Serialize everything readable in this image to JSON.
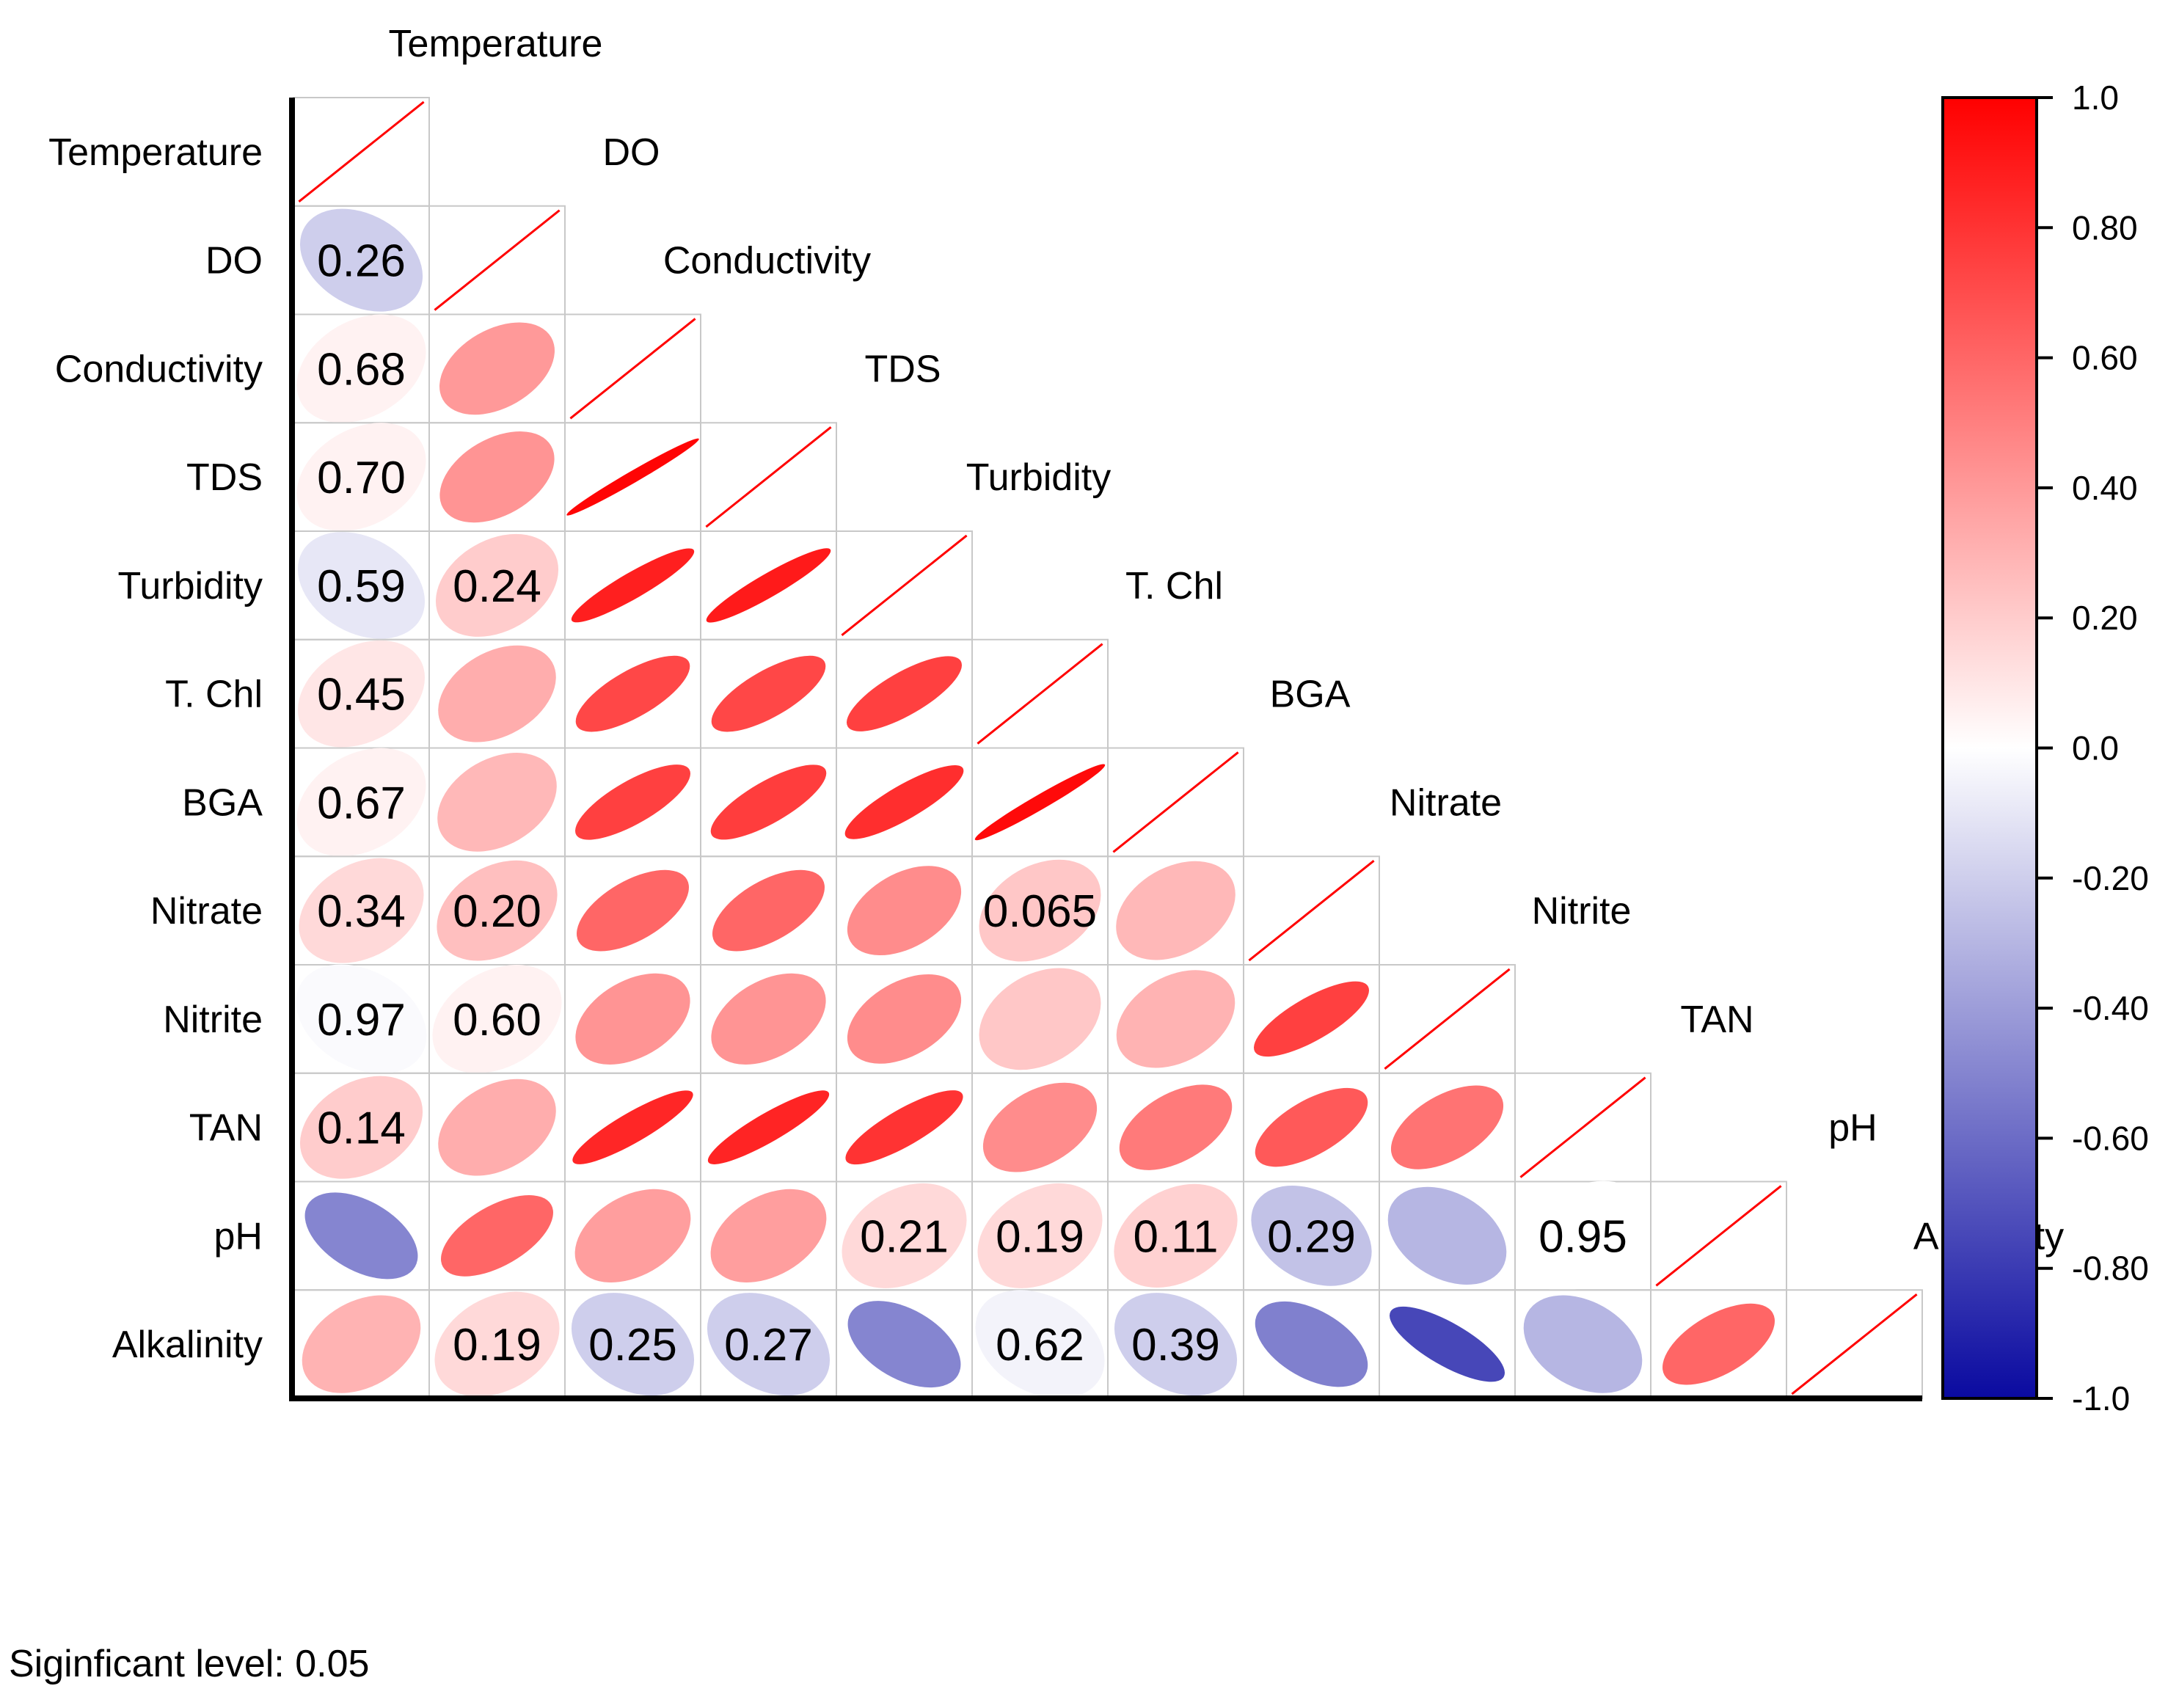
{
  "chart_data": {
    "type": "heatmap",
    "subtype": "correlation-ellipse-lower-triangle",
    "variables": [
      "Temperature",
      "DO",
      "Conductivity",
      "TDS",
      "Turbidity",
      "T. Chl",
      "BGA",
      "Nitrate",
      "Nitrite",
      "TAN",
      "pH",
      "Alkalinity"
    ],
    "correlation_lower": [
      [],
      [
        -0.2
      ],
      [
        0.05,
        0.4
      ],
      [
        0.05,
        0.42,
        0.98
      ],
      [
        -0.1,
        0.2,
        0.88,
        0.9
      ],
      [
        0.1,
        0.32,
        0.72,
        0.72,
        0.75
      ],
      [
        0.05,
        0.28,
        0.75,
        0.76,
        0.82,
        0.96
      ],
      [
        0.15,
        0.25,
        0.6,
        0.6,
        0.45,
        0.22,
        0.28
      ],
      [
        -0.02,
        0.05,
        0.42,
        0.42,
        0.45,
        0.22,
        0.3,
        0.75
      ],
      [
        0.2,
        0.32,
        0.85,
        0.86,
        0.8,
        0.45,
        0.52,
        0.65,
        0.55
      ],
      [
        -0.5,
        0.6,
        0.38,
        0.38,
        0.15,
        0.15,
        0.18,
        -0.25,
        -0.3,
        0.0
      ],
      [
        0.3,
        0.15,
        -0.2,
        -0.2,
        -0.5,
        -0.05,
        -0.2,
        -0.52,
        -0.75,
        -0.3,
        0.6
      ]
    ],
    "p_values": [
      [],
      [
        "0.26"
      ],
      [
        "0.68",
        null
      ],
      [
        "0.70",
        null,
        null
      ],
      [
        "0.59",
        "0.24",
        null,
        null
      ],
      [
        "0.45",
        null,
        null,
        null,
        null
      ],
      [
        "0.67",
        null,
        null,
        null,
        null,
        null
      ],
      [
        "0.34",
        "0.20",
        null,
        null,
        null,
        "0.065",
        null
      ],
      [
        "0.97",
        "0.60",
        null,
        null,
        null,
        null,
        null,
        null
      ],
      [
        "0.14",
        null,
        null,
        null,
        null,
        null,
        null,
        null,
        null
      ],
      [
        null,
        null,
        null,
        null,
        "0.21",
        "0.19",
        "0.11",
        "0.29",
        null,
        "0.95"
      ],
      [
        null,
        "0.19",
        "0.25",
        "0.27",
        null,
        "0.62",
        "0.39",
        null,
        null,
        null,
        null
      ]
    ],
    "colorbar": {
      "range": [
        -1.0,
        1.0
      ],
      "ticks": [
        "1.0",
        "0.80",
        "0.60",
        "0.40",
        "0.20",
        "0.0",
        "-0.20",
        "-0.40",
        "-0.60",
        "-0.80",
        "-1.0"
      ],
      "colors": {
        "negative": "#0a0aa0",
        "zero": "#ffffff",
        "positive": "#ff0000"
      }
    },
    "footnote": "Siginficant level: 0.05"
  }
}
